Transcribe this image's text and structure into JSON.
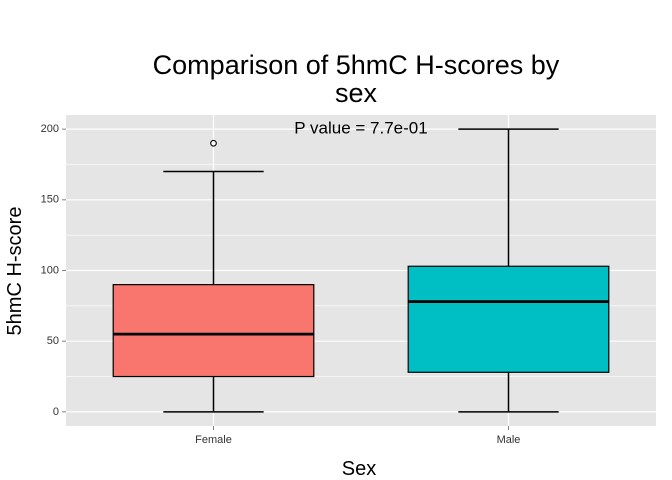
{
  "chart_data": {
    "type": "boxplot",
    "title_line1": "Comparison of 5hmC H-scores by",
    "title_line2": "sex",
    "xlabel": "Sex",
    "ylabel": "5hmC H-score",
    "ylim": [
      -10,
      210
    ],
    "yticks": [
      0,
      50,
      100,
      150,
      200
    ],
    "ytick_labels": [
      "0",
      "50",
      "100",
      "150",
      "200"
    ],
    "annotation": {
      "text": "P value = 7.7e-01",
      "x_category": 1.5,
      "y": 200
    },
    "panel_color": "#e5e5e5",
    "grid_color": "#ffffff",
    "grid": true,
    "boxes": [
      {
        "category": "Female",
        "min": 0,
        "q1": 25,
        "median": 55,
        "q3": 90,
        "max": 170,
        "outliers": [
          190
        ],
        "color": "#f8766d"
      },
      {
        "category": "Male",
        "min": 0,
        "q1": 28,
        "median": 78,
        "q3": 103,
        "max": 200,
        "outliers": [],
        "color": "#00bfc4"
      }
    ]
  }
}
